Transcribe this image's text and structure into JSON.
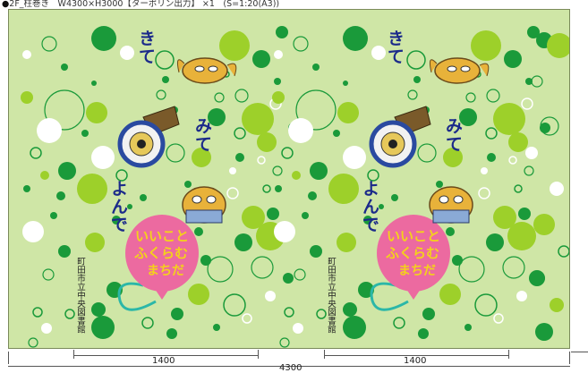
{
  "header": {
    "bullet": "●",
    "text": "2F_柱巻き　W4300×H3000【ターポリン出力】 ×1　(S=1:20(A3))"
  },
  "panels": [
    {
      "words": {
        "kite": "きて",
        "mite": "みて",
        "yonde": "よんで"
      },
      "balloon_text": [
        "いいこと",
        "ふくらむ",
        "まちだ"
      ],
      "library": "町田市立中央図書館"
    },
    {
      "words": {
        "kite": "きて",
        "mite": "みて",
        "yonde": "よんで"
      },
      "balloon_text": [
        "いいこと",
        "ふくらむ",
        "まちだ"
      ],
      "library": "町田市立中央図書館"
    }
  ],
  "dimensions": {
    "left_span": "1400",
    "right_span": "1400",
    "total_width": "4300"
  },
  "colors": {
    "background": "#cfe6a6",
    "light_green": "#9dd02a",
    "dark_green": "#1a9a3a",
    "text_blue": "#1b2a8a",
    "balloon_pink": "#ec6aa0",
    "balloon_text": "#f4d21a"
  }
}
